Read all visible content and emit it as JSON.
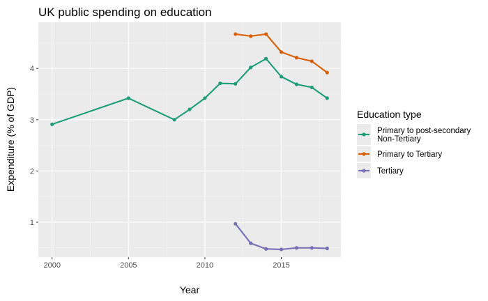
{
  "chart_data": {
    "type": "line",
    "title": "UK public spending on education",
    "xlabel": "Year",
    "ylabel": "Expenditure (% of GDP)",
    "xlim": [
      1999.1,
      2018.9
    ],
    "ylim": [
      0.32,
      4.9
    ],
    "x_ticks": [
      2000,
      2005,
      2010,
      2015
    ],
    "x_tick_labels": [
      "2000",
      "2005",
      "2010",
      "2015"
    ],
    "y_ticks": [
      1,
      2,
      3,
      4
    ],
    "y_tick_labels": [
      "1",
      "2",
      "3",
      "4"
    ],
    "grid": true,
    "legend": {
      "title": "Education type",
      "placement": "right"
    },
    "series": [
      {
        "name": "Primary to post-secondary Non-Tertiary",
        "name_lines": [
          "Primary to post-secondary",
          "Non-Tertiary"
        ],
        "color": "#1b9e77",
        "points": [
          {
            "x": 2000,
            "y": 2.91
          },
          {
            "x": 2005,
            "y": 3.42
          },
          {
            "x": 2008,
            "y": 3.0
          },
          {
            "x": 2009,
            "y": 3.2
          },
          {
            "x": 2010,
            "y": 3.42
          },
          {
            "x": 2011,
            "y": 3.71
          },
          {
            "x": 2012,
            "y": 3.7
          },
          {
            "x": 2013,
            "y": 4.02
          },
          {
            "x": 2014,
            "y": 4.19
          },
          {
            "x": 2015,
            "y": 3.84
          },
          {
            "x": 2016,
            "y": 3.69
          },
          {
            "x": 2017,
            "y": 3.63
          },
          {
            "x": 2018,
            "y": 3.42
          }
        ]
      },
      {
        "name": "Primary to Tertiary",
        "name_lines": [
          "Primary to Tertiary"
        ],
        "color": "#d95f02",
        "points": [
          {
            "x": 2012,
            "y": 4.67
          },
          {
            "x": 2013,
            "y": 4.63
          },
          {
            "x": 2014,
            "y": 4.67
          },
          {
            "x": 2015,
            "y": 4.32
          },
          {
            "x": 2016,
            "y": 4.21
          },
          {
            "x": 2017,
            "y": 4.14
          },
          {
            "x": 2018,
            "y": 3.92
          }
        ]
      },
      {
        "name": "Tertiary",
        "name_lines": [
          "Tertiary"
        ],
        "color": "#7570b3",
        "points": [
          {
            "x": 2012,
            "y": 0.97
          },
          {
            "x": 2013,
            "y": 0.59
          },
          {
            "x": 2014,
            "y": 0.48
          },
          {
            "x": 2015,
            "y": 0.47
          },
          {
            "x": 2016,
            "y": 0.5
          },
          {
            "x": 2017,
            "y": 0.5
          },
          {
            "x": 2018,
            "y": 0.49
          }
        ]
      }
    ]
  }
}
